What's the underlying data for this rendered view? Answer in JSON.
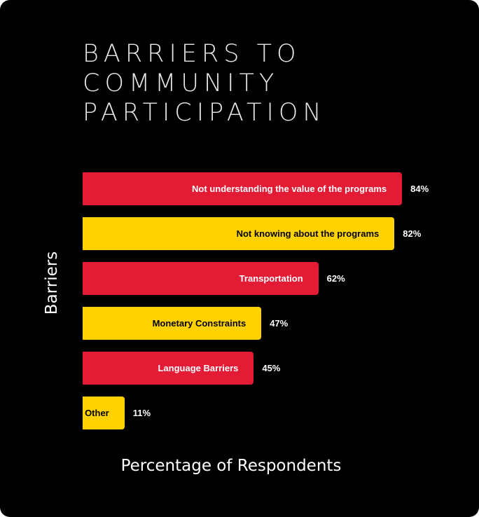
{
  "chart_data": {
    "type": "bar",
    "orientation": "horizontal",
    "title_lines": [
      "BARRIERS TO",
      "COMMUNITY",
      "PARTICIPATION"
    ],
    "xlabel": "Percentage of Respondents",
    "ylabel": "Barriers",
    "xlim": [
      0,
      100
    ],
    "categories": [
      "Not understanding the value of the programs",
      "Not knowing about the programs",
      "Transportation",
      "Monetary Constraints",
      "Language Barriers",
      "Other"
    ],
    "values": [
      84,
      82,
      62,
      47,
      45,
      11
    ],
    "value_labels": [
      "84%",
      "82%",
      "62%",
      "47%",
      "45%",
      "11%"
    ],
    "bar_colors": [
      "#e31b35",
      "#ffd200",
      "#e31b35",
      "#ffd200",
      "#e31b35",
      "#ffd200"
    ],
    "label_colors": [
      "#ffffff",
      "#000000",
      "#ffffff",
      "#000000",
      "#ffffff",
      "#000000"
    ],
    "grid": false,
    "legend": "none"
  }
}
